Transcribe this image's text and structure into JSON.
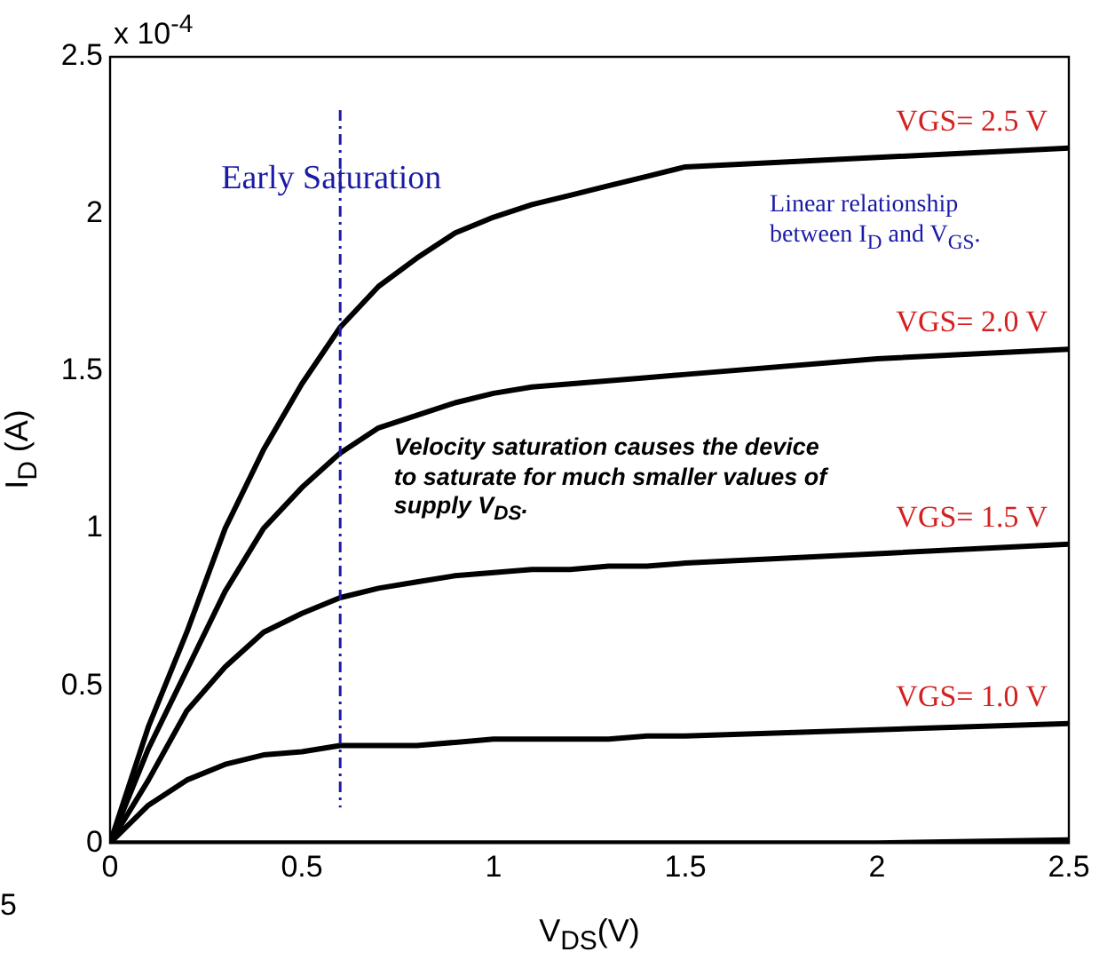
{
  "chart_data": {
    "type": "line",
    "xlabel": "V$_{DS}$(V)",
    "ylabel": "I$_{D}$ (A)",
    "x": [
      0,
      0.1,
      0.2,
      0.3,
      0.4,
      0.5,
      0.6,
      0.7,
      0.8,
      0.9,
      1.0,
      1.1,
      1.2,
      1.3,
      1.4,
      1.5,
      2.0,
      2.5
    ],
    "series": [
      {
        "name": "VGS= 2.5 V",
        "color": "#000000",
        "values": [
          0,
          0.37,
          0.67,
          1.0,
          1.25,
          1.46,
          1.64,
          1.77,
          1.86,
          1.94,
          1.99,
          2.03,
          2.06,
          2.09,
          2.12,
          2.15,
          2.18,
          2.21
        ]
      },
      {
        "name": "VGS= 2.0 V",
        "color": "#000000",
        "values": [
          0,
          0.3,
          0.55,
          0.8,
          1.0,
          1.13,
          1.24,
          1.32,
          1.36,
          1.4,
          1.43,
          1.45,
          1.46,
          1.47,
          1.48,
          1.49,
          1.54,
          1.57
        ]
      },
      {
        "name": "VGS= 1.5 V",
        "color": "#000000",
        "values": [
          0,
          0.2,
          0.42,
          0.56,
          0.67,
          0.73,
          0.78,
          0.81,
          0.83,
          0.85,
          0.86,
          0.87,
          0.87,
          0.88,
          0.88,
          0.89,
          0.92,
          0.95
        ]
      },
      {
        "name": "VGS= 1.0 V",
        "color": "#000000",
        "values": [
          0,
          0.12,
          0.2,
          0.25,
          0.28,
          0.29,
          0.31,
          0.31,
          0.31,
          0.32,
          0.33,
          0.33,
          0.33,
          0.33,
          0.34,
          0.34,
          0.36,
          0.38
        ]
      },
      {
        "color": "#000000",
        "values": [
          0,
          0,
          0,
          0,
          0,
          0,
          0,
          0,
          0,
          0,
          0,
          0,
          0,
          0,
          0,
          0,
          0,
          0.01
        ]
      }
    ],
    "xlim": [
      0,
      2.5
    ],
    "xticks": [
      0,
      0.5,
      1,
      1.5,
      2,
      2.5
    ],
    "ylim": [
      0,
      2.5
    ],
    "yticks": [
      0,
      0.5,
      1,
      1.5,
      2,
      2.5
    ],
    "ref_lines": [
      {
        "axis": "x",
        "value": 0.6,
        "color": "#1a1aa6",
        "line_style": "dashed"
      }
    ],
    "annotations": [
      "x 10$^{-4}$",
      "Early Saturation",
      "Linear relationship between I$_{D}$ and V$_{GS}$.",
      "Velocity saturation causes the device to saturate for much smaller values of supply V$_{DS}$.",
      "5"
    ],
    "grid": false,
    "legend": false,
    "marker": "none",
    "line_style": "solid"
  }
}
